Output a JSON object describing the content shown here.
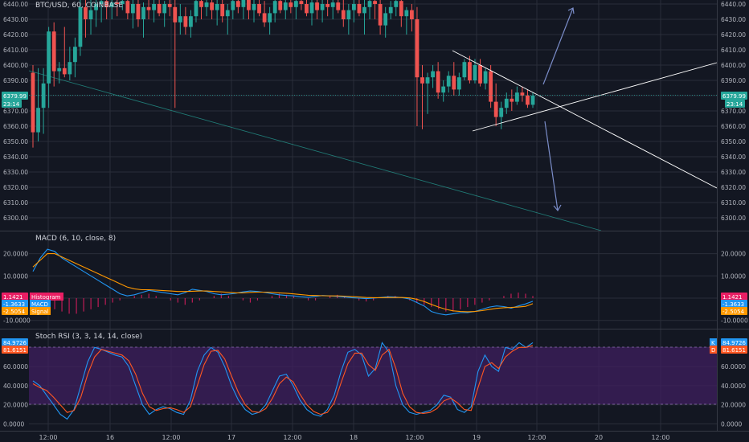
{
  "chart_data": [
    {
      "type": "candlestick",
      "title": "BTC/USD, 60, COINBASE",
      "y_ticks": [
        6300,
        6310,
        6320,
        6330,
        6340,
        6350,
        6360,
        6370,
        6380,
        6390,
        6400,
        6410,
        6420,
        6430,
        6440
      ],
      "ylim": [
        6292,
        6443
      ],
      "current_price": "6379.99",
      "countdown": "23:14",
      "grid": true,
      "candles": [
        [
          6395,
          6400,
          6346,
          6356
        ],
        [
          6356,
          6398,
          6350,
          6372
        ],
        [
          6372,
          6398,
          6355,
          6388
        ],
        [
          6388,
          6425,
          6372,
          6422
        ],
        [
          6422,
          6428,
          6386,
          6396
        ],
        [
          6396,
          6402,
          6388,
          6398
        ],
        [
          6398,
          6425,
          6392,
          6394
        ],
        [
          6394,
          6412,
          6390,
          6402
        ],
        [
          6402,
          6418,
          6392,
          6412
        ],
        [
          6412,
          6445,
          6406,
          6438
        ],
        [
          6438,
          6445,
          6418,
          6430
        ],
        [
          6430,
          6445,
          6420,
          6436
        ],
        [
          6436,
          6445,
          6425,
          6440
        ],
        [
          6440,
          6445,
          6428,
          6442
        ],
        [
          6442,
          6445,
          6430,
          6438
        ],
        [
          6438,
          6445,
          6430,
          6441
        ],
        [
          6441,
          6445,
          6432,
          6440
        ],
        [
          6440,
          6445,
          6436,
          6442
        ],
        [
          6442,
          6445,
          6430,
          6434
        ],
        [
          6434,
          6445,
          6424,
          6440
        ],
        [
          6440,
          6445,
          6425,
          6430
        ],
        [
          6430,
          6441,
          6418,
          6438
        ],
        [
          6438,
          6445,
          6430,
          6436
        ],
        [
          6436,
          6445,
          6428,
          6440
        ],
        [
          6440,
          6445,
          6432,
          6434
        ],
        [
          6434,
          6442,
          6425,
          6440
        ],
        [
          6440,
          6445,
          6432,
          6438
        ],
        [
          6438,
          6445,
          6372,
          6428
        ],
        [
          6428,
          6440,
          6420,
          6432
        ],
        [
          6432,
          6438,
          6420,
          6425
        ],
        [
          6425,
          6436,
          6418,
          6432
        ],
        [
          6432,
          6445,
          6428,
          6442
        ],
        [
          6442,
          6445,
          6430,
          6438
        ],
        [
          6438,
          6445,
          6432,
          6441
        ],
        [
          6441,
          6445,
          6430,
          6436
        ],
        [
          6436,
          6445,
          6426,
          6440
        ],
        [
          6440,
          6445,
          6428,
          6432
        ],
        [
          6432,
          6440,
          6420,
          6436
        ],
        [
          6436,
          6445,
          6430,
          6442
        ],
        [
          6442,
          6445,
          6434,
          6438
        ],
        [
          6438,
          6445,
          6430,
          6444
        ],
        [
          6444,
          6445,
          6430,
          6436
        ],
        [
          6436,
          6445,
          6428,
          6440
        ],
        [
          6440,
          6445,
          6432,
          6434
        ],
        [
          6434,
          6442,
          6425,
          6428
        ],
        [
          6428,
          6438,
          6420,
          6434
        ],
        [
          6434,
          6445,
          6428,
          6442
        ],
        [
          6442,
          6445,
          6434,
          6436
        ],
        [
          6436,
          6445,
          6430,
          6441
        ],
        [
          6441,
          6445,
          6434,
          6438
        ],
        [
          6438,
          6445,
          6430,
          6442
        ],
        [
          6442,
          6445,
          6436,
          6440
        ],
        [
          6440,
          6445,
          6432,
          6434
        ],
        [
          6434,
          6444,
          6426,
          6441
        ],
        [
          6441,
          6445,
          6430,
          6436
        ],
        [
          6436,
          6445,
          6428,
          6440
        ],
        [
          6440,
          6445,
          6432,
          6438
        ],
        [
          6438,
          6445,
          6430,
          6441
        ],
        [
          6441,
          6445,
          6434,
          6436
        ],
        [
          6436,
          6445,
          6425,
          6430
        ],
        [
          6430,
          6440,
          6420,
          6436
        ],
        [
          6436,
          6445,
          6428,
          6440
        ],
        [
          6440,
          6445,
          6432,
          6434
        ],
        [
          6434,
          6443,
          6420,
          6438
        ],
        [
          6438,
          6445,
          6430,
          6442
        ],
        [
          6442,
          6445,
          6430,
          6440
        ],
        [
          6440,
          6445,
          6420,
          6426
        ],
        [
          6426,
          6438,
          6418,
          6434
        ],
        [
          6434,
          6442,
          6430,
          6438
        ],
        [
          6438,
          6445,
          6432,
          6442
        ],
        [
          6442,
          6445,
          6425,
          6432
        ],
        [
          6432,
          6438,
          6420,
          6436
        ],
        [
          6436,
          6440,
          6422,
          6430
        ],
        [
          6430,
          6438,
          6360,
          6392
        ],
        [
          6392,
          6400,
          6358,
          6388
        ],
        [
          6388,
          6395,
          6368,
          6392
        ],
        [
          6392,
          6400,
          6385,
          6396
        ],
        [
          6396,
          6402,
          6378,
          6382
        ],
        [
          6382,
          6390,
          6376,
          6386
        ],
        [
          6386,
          6396,
          6382,
          6393
        ],
        [
          6393,
          6402,
          6380,
          6384
        ],
        [
          6384,
          6395,
          6380,
          6392
        ],
        [
          6392,
          6404,
          6390,
          6402
        ],
        [
          6402,
          6406,
          6388,
          6390
        ],
        [
          6390,
          6404,
          6388,
          6400
        ],
        [
          6400,
          6404,
          6386,
          6388
        ],
        [
          6388,
          6398,
          6384,
          6396
        ],
        [
          6396,
          6400,
          6372,
          6376
        ],
        [
          6376,
          6388,
          6360,
          6366
        ],
        [
          6366,
          6376,
          6358,
          6372
        ],
        [
          6372,
          6382,
          6368,
          6378
        ],
        [
          6378,
          6384,
          6370,
          6376
        ],
        [
          6376,
          6386,
          6374,
          6382
        ],
        [
          6382,
          6386,
          6376,
          6380
        ],
        [
          6380,
          6384,
          6372,
          6374
        ],
        [
          6374,
          6382,
          6372,
          6380
        ]
      ]
    },
    {
      "type": "line",
      "title": "MACD (6, 10, close, 8)",
      "y_ticks": [
        20,
        10,
        0,
        -10
      ],
      "y_tick_labels": [
        "20.0000",
        "10.0000",
        "0.0000",
        "-10.0000"
      ],
      "ylim": [
        -12,
        28
      ],
      "grid": true,
      "series": [
        {
          "name": "Histogram",
          "value": "1.1421",
          "color": "#e91e63",
          "values": [
            -2,
            -3,
            -4,
            -5,
            -6,
            -7,
            -7,
            -6,
            -5,
            -4,
            -3,
            -2,
            -1,
            0,
            1,
            1.5,
            2,
            1,
            0,
            -1,
            -2,
            -3,
            -2,
            -1,
            0,
            1,
            2,
            1,
            0,
            -1,
            -2,
            -1,
            0,
            1,
            2,
            1.5,
            1,
            0,
            -1,
            -1,
            0,
            1,
            1.5,
            1,
            0,
            -1,
            -1.5,
            -1,
            0,
            1,
            1,
            0,
            -1,
            -2,
            -3,
            -4,
            -5,
            -6,
            -6,
            -5,
            -4,
            -3,
            -2,
            -1,
            0,
            1,
            2,
            2.5,
            2,
            1
          ]
        },
        {
          "name": "MACD",
          "value": "-1.3633",
          "color": "#2196f3",
          "values": [
            12,
            18,
            22,
            21,
            18,
            16,
            14,
            12,
            10,
            8,
            6,
            4,
            2,
            1,
            1.5,
            2.5,
            3.5,
            3,
            2.5,
            2,
            1.5,
            2.5,
            4,
            3.5,
            3,
            2,
            1.5,
            1.8,
            2.2,
            2.8,
            3.2,
            3,
            2.6,
            2,
            1.5,
            1.2,
            1,
            0.6,
            0.4,
            0.8,
            1.2,
            1,
            0.8,
            0.5,
            0.2,
            0,
            -0.2,
            0,
            0.3,
            0.6,
            0.5,
            0.2,
            -0.4,
            -2,
            -3.5,
            -6,
            -7,
            -7.5,
            -7,
            -6.5,
            -6.5,
            -6,
            -5,
            -4,
            -3.5,
            -3.8,
            -4.5,
            -3.5,
            -2.6,
            -1.4
          ]
        },
        {
          "name": "Signal",
          "value": "-2.5054",
          "color": "#ff9800",
          "values": [
            14,
            17,
            20,
            20,
            18.5,
            17,
            15.5,
            14,
            12.5,
            11,
            9.5,
            8,
            6.5,
            5,
            4.2,
            3.8,
            3.8,
            3.6,
            3.4,
            3.2,
            3,
            3,
            3.1,
            3.2,
            3.2,
            3,
            2.8,
            2.6,
            2.4,
            2.4,
            2.6,
            2.7,
            2.7,
            2.6,
            2.4,
            2.2,
            1.9,
            1.6,
            1.3,
            1.2,
            1.1,
            1,
            1,
            0.9,
            0.7,
            0.5,
            0.3,
            0.2,
            0.2,
            0.3,
            0.3,
            0.3,
            0.1,
            -0.5,
            -1.5,
            -2.8,
            -4,
            -5,
            -5.7,
            -6,
            -6.1,
            -6,
            -5.6,
            -5.1,
            -4.6,
            -4.3,
            -4.2,
            -4,
            -3.7,
            -2.5
          ]
        }
      ]
    },
    {
      "type": "line",
      "title": "Stoch RSI (3, 3, 14, 14, close)",
      "y_ticks": [
        80,
        60,
        40,
        20,
        0
      ],
      "y_tick_labels": [
        "80.0000",
        "60.0000",
        "40.0000",
        "20.0000",
        "0.0000"
      ],
      "ylim": [
        -5,
        92
      ],
      "band": [
        20,
        80
      ],
      "grid": true,
      "series": [
        {
          "name": "K",
          "value": "84.9726",
          "color": "#2196f3",
          "values": [
            45,
            40,
            30,
            20,
            10,
            5,
            15,
            40,
            65,
            80,
            78,
            75,
            72,
            70,
            60,
            40,
            20,
            10,
            15,
            18,
            16,
            12,
            10,
            25,
            55,
            72,
            80,
            75,
            60,
            40,
            25,
            15,
            10,
            12,
            20,
            35,
            50,
            52,
            40,
            25,
            15,
            10,
            8,
            15,
            30,
            55,
            75,
            78,
            72,
            50,
            58,
            85,
            75,
            40,
            20,
            12,
            10,
            12,
            14,
            20,
            30,
            28,
            15,
            12,
            18,
            55,
            72,
            60,
            55,
            80,
            78,
            85,
            80,
            85
          ]
        },
        {
          "name": "D",
          "value": "81.6151",
          "color": "#ff5722",
          "values": [
            42,
            38,
            35,
            28,
            20,
            12,
            14,
            28,
            52,
            70,
            78,
            76,
            74,
            72,
            66,
            52,
            32,
            18,
            14,
            16,
            17,
            15,
            12,
            18,
            40,
            62,
            76,
            77,
            68,
            50,
            33,
            20,
            13,
            12,
            16,
            27,
            42,
            49,
            44,
            31,
            20,
            13,
            10,
            12,
            22,
            43,
            63,
            74,
            74,
            62,
            56,
            72,
            78,
            58,
            32,
            18,
            12,
            11,
            12,
            16,
            24,
            27,
            22,
            15,
            14,
            38,
            60,
            64,
            58,
            70,
            76,
            80,
            80,
            82
          ]
        }
      ]
    }
  ],
  "x_ticks": [
    "12:00",
    "16",
    "12:00",
    "17",
    "12:00",
    "18",
    "12:00",
    "19",
    "12:00",
    "20",
    "12:00"
  ],
  "colors": {
    "background": "#131722",
    "up": "#26a69a",
    "down": "#ef5350",
    "grid": "#2a2e39",
    "drawing": "#ffffff",
    "arrow": "#7a8cc8",
    "band": "#3f1f5f"
  }
}
